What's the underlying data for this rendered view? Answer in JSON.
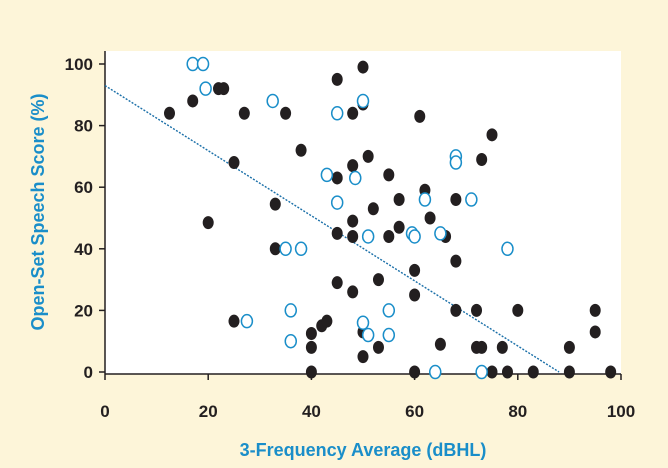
{
  "chart_data": {
    "type": "scatter",
    "title": "",
    "xlabel": "3-Frequency Average (dBHL)",
    "ylabel": "Open-Set Speech Score (%)",
    "xlim": [
      0,
      100
    ],
    "ylim": [
      0,
      100
    ],
    "x_ticks": [
      "0",
      "20",
      "40",
      "60",
      "80",
      "100"
    ],
    "y_ticks": [
      "0",
      "20",
      "40",
      "60",
      "80",
      "100"
    ],
    "grid": false,
    "legend": "none",
    "colors": {
      "background": "#fdf5d9",
      "plot_area": "#ffffff",
      "axis_title": "#1a8ec9",
      "filled_marker": "#231f20",
      "open_marker_stroke": "#1a8ec9",
      "trend_line": "#1a6fa8"
    },
    "series": [
      {
        "marker": "filled",
        "points": [
          [
            12.5,
            84
          ],
          [
            17,
            88
          ],
          [
            20,
            48.5
          ],
          [
            22,
            92
          ],
          [
            23,
            92
          ],
          [
            25,
            68
          ],
          [
            25,
            16.5
          ],
          [
            27,
            84
          ],
          [
            33,
            54.5
          ],
          [
            33,
            40
          ],
          [
            35,
            84
          ],
          [
            38,
            72
          ],
          [
            40,
            12.5
          ],
          [
            40,
            8
          ],
          [
            40,
            0
          ],
          [
            42,
            15
          ],
          [
            43,
            16.5
          ],
          [
            45,
            95
          ],
          [
            45,
            63
          ],
          [
            45,
            45
          ],
          [
            45,
            29
          ],
          [
            48,
            84
          ],
          [
            48,
            67
          ],
          [
            48,
            49
          ],
          [
            48,
            44
          ],
          [
            48,
            26
          ],
          [
            50,
            99
          ],
          [
            50,
            87
          ],
          [
            50,
            13
          ],
          [
            50,
            5
          ],
          [
            51,
            70
          ],
          [
            52,
            53
          ],
          [
            53,
            30
          ],
          [
            53,
            8
          ],
          [
            55,
            64
          ],
          [
            55,
            44
          ],
          [
            57,
            56
          ],
          [
            57,
            47
          ],
          [
            60,
            33
          ],
          [
            60,
            25
          ],
          [
            60,
            0
          ],
          [
            61,
            83
          ],
          [
            62,
            59
          ],
          [
            63,
            50
          ],
          [
            65,
            9
          ],
          [
            66,
            44
          ],
          [
            68,
            56
          ],
          [
            68,
            36
          ],
          [
            68,
            20
          ],
          [
            72,
            20
          ],
          [
            72,
            8
          ],
          [
            73,
            69
          ],
          [
            73,
            8
          ],
          [
            75,
            77
          ],
          [
            75,
            0
          ],
          [
            77,
            8
          ],
          [
            78,
            0
          ],
          [
            80,
            20
          ],
          [
            83,
            0
          ],
          [
            90,
            8
          ],
          [
            90,
            0
          ],
          [
            95,
            20
          ],
          [
            95,
            13
          ],
          [
            98,
            0
          ]
        ]
      },
      {
        "marker": "open",
        "points": [
          [
            17,
            100
          ],
          [
            19,
            100
          ],
          [
            19.5,
            92
          ],
          [
            27.5,
            16.5
          ],
          [
            32.5,
            88
          ],
          [
            35,
            40
          ],
          [
            36,
            20
          ],
          [
            36,
            10
          ],
          [
            38,
            40
          ],
          [
            43,
            64
          ],
          [
            45,
            55
          ],
          [
            45,
            84
          ],
          [
            48.5,
            63
          ],
          [
            50,
            16
          ],
          [
            50,
            88
          ],
          [
            51,
            44
          ],
          [
            51,
            12
          ],
          [
            55,
            20
          ],
          [
            55,
            12
          ],
          [
            59.5,
            45
          ],
          [
            60,
            44
          ],
          [
            62,
            56
          ],
          [
            64,
            0
          ],
          [
            65,
            45
          ],
          [
            68,
            70
          ],
          [
            68,
            68
          ],
          [
            71,
            56
          ],
          [
            73,
            0
          ],
          [
            78,
            40
          ]
        ]
      }
    ],
    "trend_line": {
      "x": [
        0,
        88
      ],
      "y": [
        93,
        0
      ]
    }
  }
}
